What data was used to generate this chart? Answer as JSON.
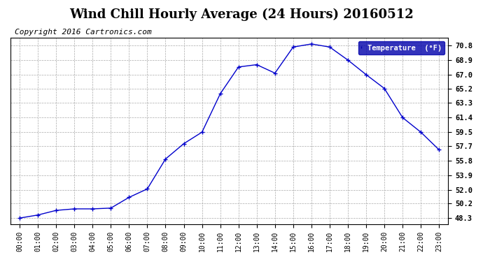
{
  "title": "Wind Chill Hourly Average (24 Hours) 20160512",
  "copyright_text": "Copyright 2016 Cartronics.com",
  "legend_label": "Temperature  (°F)",
  "x_labels": [
    "00:00",
    "01:00",
    "02:00",
    "03:00",
    "04:00",
    "05:00",
    "06:00",
    "07:00",
    "08:00",
    "09:00",
    "10:00",
    "11:00",
    "12:00",
    "13:00",
    "14:00",
    "15:00",
    "16:00",
    "17:00",
    "18:00",
    "19:00",
    "20:00",
    "21:00",
    "22:00",
    "23:00"
  ],
  "y_values": [
    48.3,
    48.7,
    49.3,
    49.5,
    49.5,
    49.6,
    51.0,
    52.1,
    56.0,
    58.0,
    59.5,
    64.5,
    68.0,
    68.3,
    67.2,
    70.6,
    71.0,
    70.6,
    68.9,
    67.0,
    65.2,
    61.4,
    59.5,
    57.2
  ],
  "y_ticks": [
    48.3,
    50.2,
    52.0,
    53.9,
    55.8,
    57.7,
    59.5,
    61.4,
    63.3,
    65.2,
    67.0,
    68.9,
    70.8
  ],
  "ylim": [
    47.5,
    71.8
  ],
  "line_color": "#0000cc",
  "marker": "+",
  "marker_color": "#0000cc",
  "bg_color": "#ffffff",
  "grid_color": "#aaaaaa",
  "title_fontsize": 13,
  "copyright_fontsize": 8,
  "legend_bg": "#0000aa",
  "legend_text_color": "#ffffff"
}
